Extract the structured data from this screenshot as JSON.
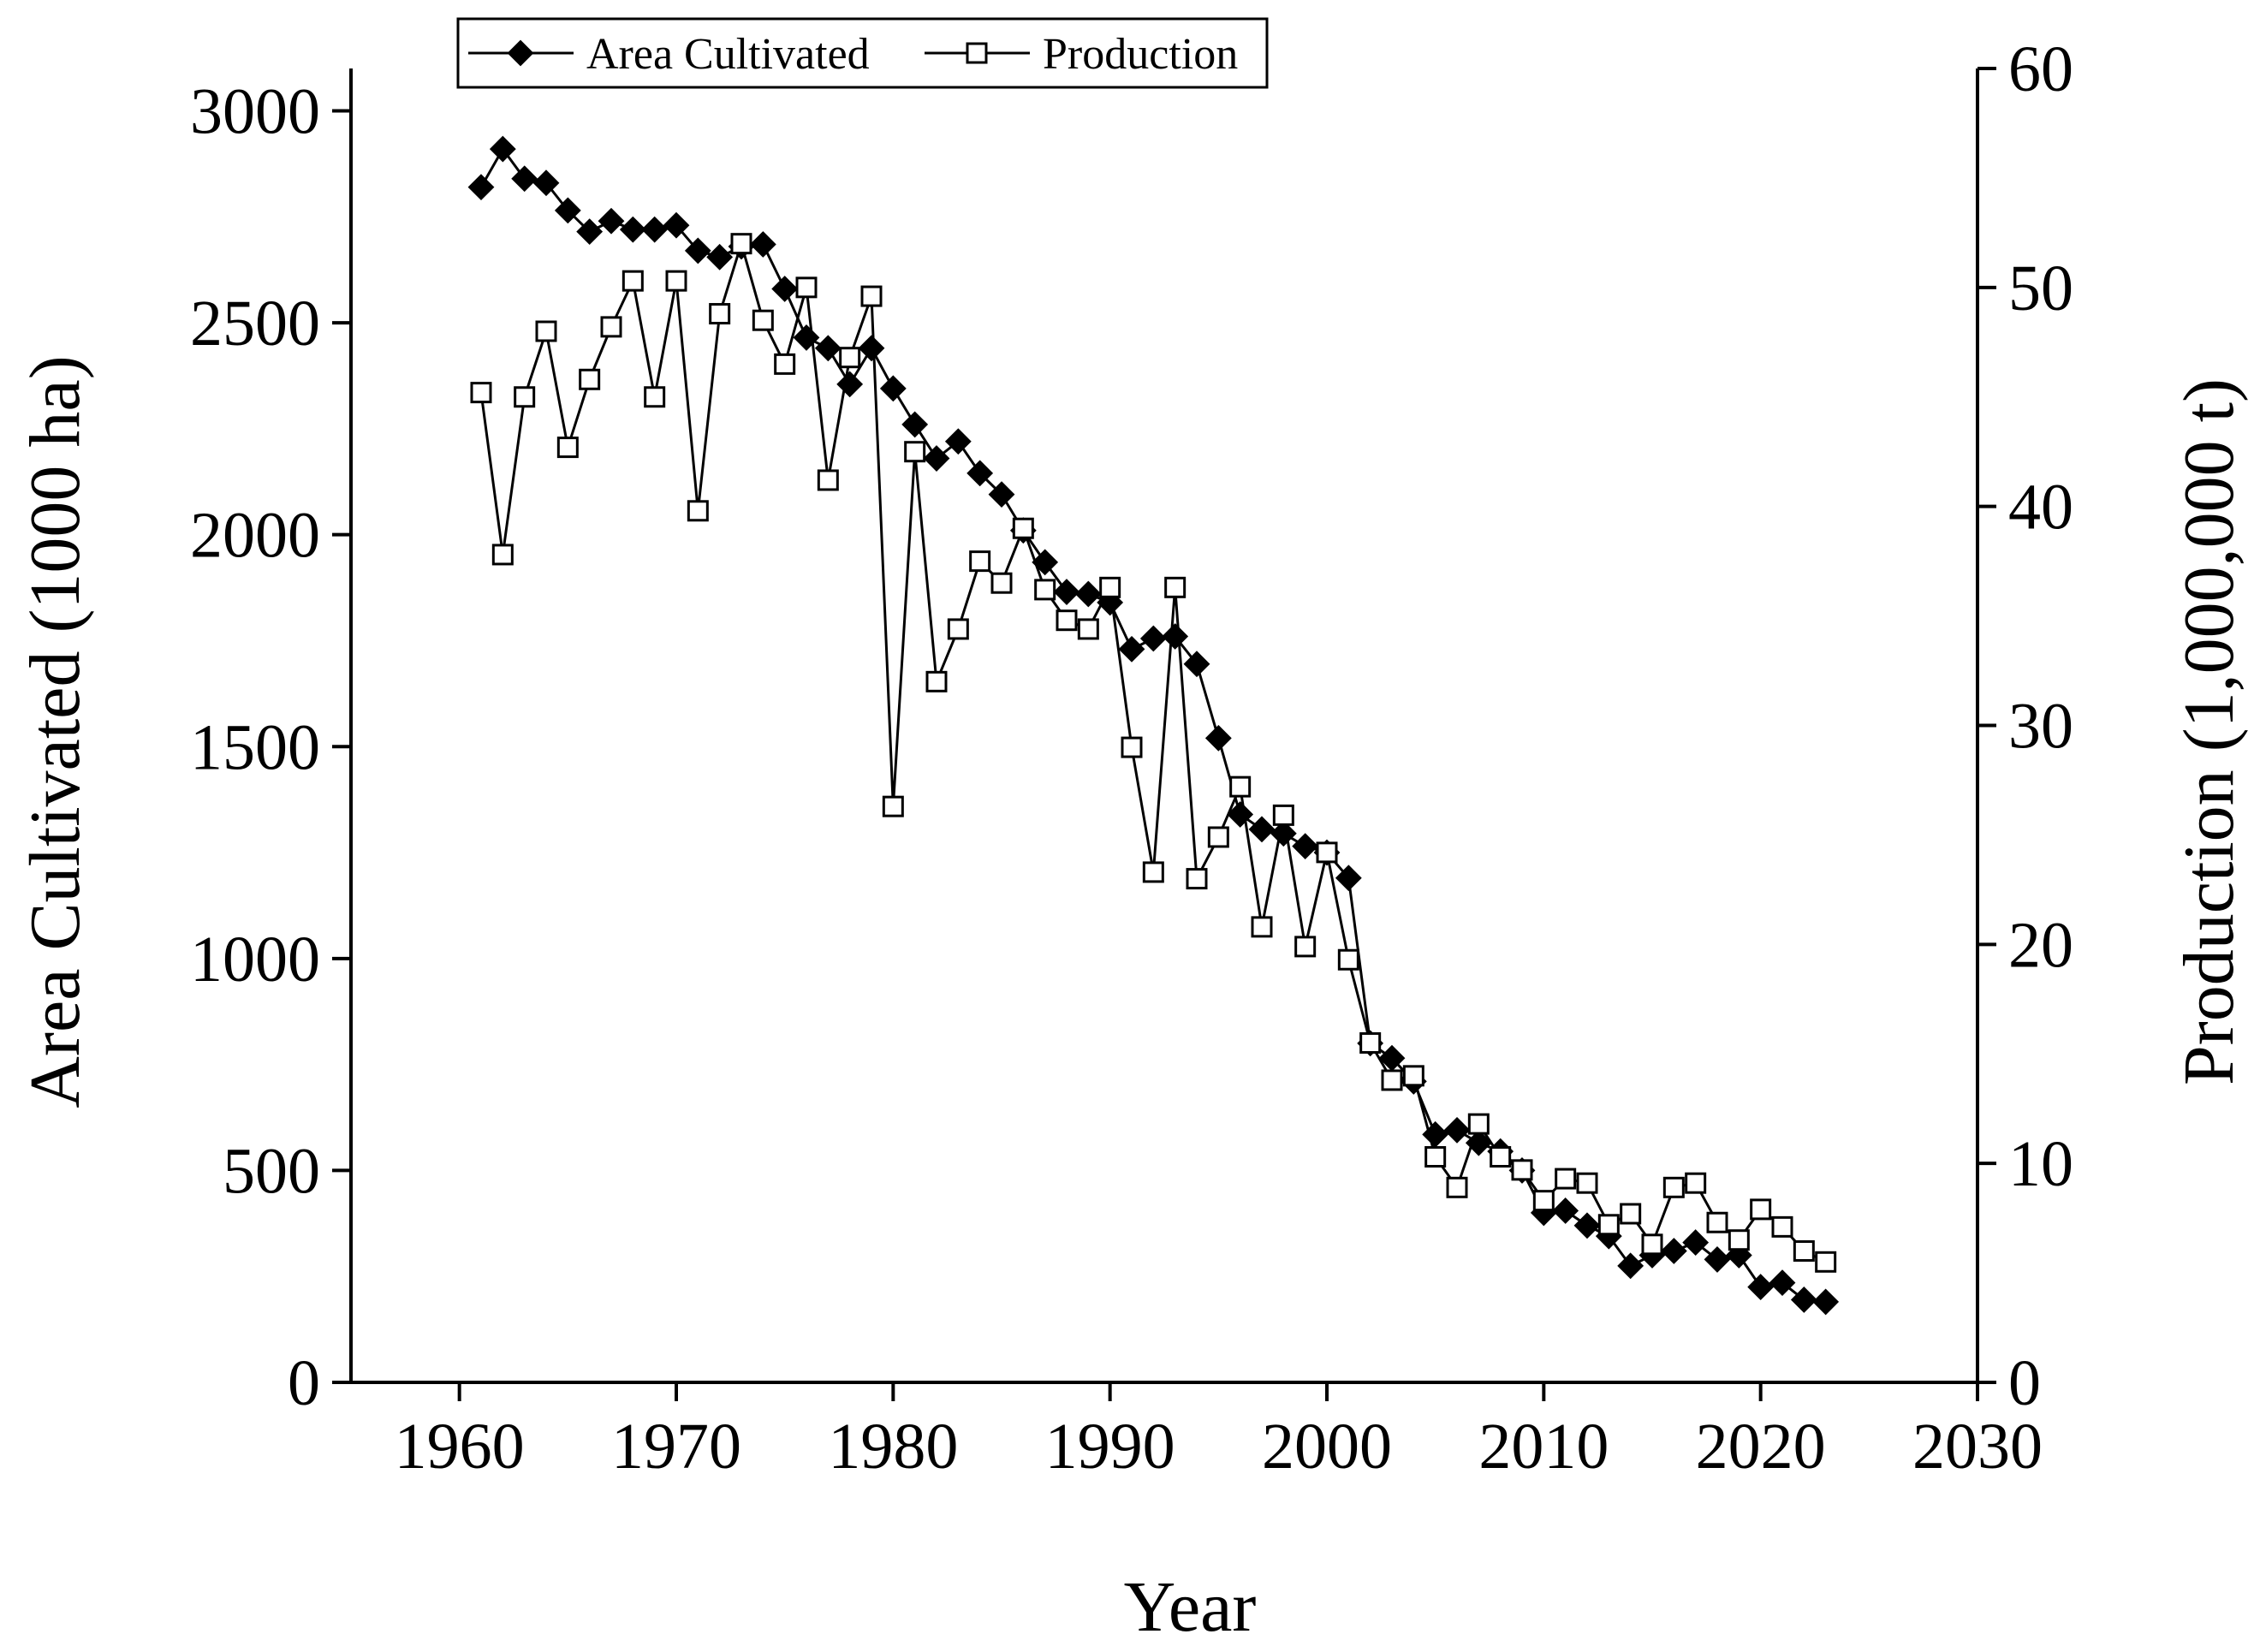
{
  "chart_data": {
    "type": "line",
    "xlabel": "Year",
    "ylabel": "Area Cultivated (1000 ha)",
    "y2label": "Production (1,000,000 t)",
    "xlim": [
      1955,
      2030
    ],
    "ylim": [
      0,
      3100
    ],
    "y2lim": [
      0,
      60
    ],
    "xticks": [
      1960,
      1970,
      1980,
      1990,
      2000,
      2010,
      2020,
      2030
    ],
    "yticks": [
      0,
      500,
      1000,
      1500,
      2000,
      2500,
      3000
    ],
    "y2ticks": [
      0,
      10,
      20,
      30,
      40,
      50,
      60
    ],
    "grid": false,
    "legend_position": "top-left",
    "x": [
      1961,
      1962,
      1963,
      1964,
      1965,
      1966,
      1967,
      1968,
      1969,
      1970,
      1971,
      1972,
      1973,
      1974,
      1975,
      1976,
      1977,
      1978,
      1979,
      1980,
      1981,
      1982,
      1983,
      1984,
      1985,
      1986,
      1987,
      1988,
      1989,
      1990,
      1991,
      1992,
      1993,
      1994,
      1995,
      1996,
      1997,
      1998,
      1999,
      2000,
      2001,
      2002,
      2003,
      2004,
      2005,
      2006,
      2007,
      2008,
      2009,
      2010,
      2011,
      2012,
      2013,
      2014,
      2015,
      2016,
      2017,
      2018,
      2019,
      2020,
      2021,
      2022,
      2023
    ],
    "series": [
      {
        "name": "Area Cultivated",
        "axis": "left",
        "marker": "filled-diamond",
        "color": "#000000",
        "values": [
          2820,
          2910,
          2840,
          2830,
          2765,
          2715,
          2740,
          2720,
          2720,
          2730,
          2670,
          2655,
          2680,
          2685,
          2580,
          2465,
          2440,
          2355,
          2440,
          2345,
          2260,
          2180,
          2220,
          2145,
          2095,
          2010,
          1935,
          1865,
          1860,
          1840,
          1730,
          1755,
          1760,
          1695,
          1520,
          1340,
          1305,
          1295,
          1265,
          1250,
          1190,
          800,
          765,
          710,
          585,
          595,
          565,
          545,
          500,
          400,
          405,
          370,
          345,
          275,
          300,
          310,
          330,
          290,
          300,
          225,
          235,
          195,
          190
        ]
      },
      {
        "name": "Production",
        "axis": "right",
        "marker": "open-square",
        "color": "#000000",
        "values": [
          45.2,
          37.8,
          45.0,
          48.0,
          42.7,
          45.8,
          48.2,
          50.3,
          45.0,
          50.3,
          39.8,
          48.8,
          52.0,
          48.5,
          46.5,
          50.0,
          41.2,
          46.8,
          49.6,
          26.3,
          42.5,
          32.0,
          34.4,
          37.5,
          36.5,
          39.0,
          36.2,
          34.8,
          34.4,
          36.3,
          29.0,
          23.3,
          36.3,
          23.0,
          24.9,
          27.2,
          20.8,
          25.9,
          19.9,
          24.2,
          19.3,
          15.5,
          13.8,
          14.0,
          10.3,
          8.9,
          11.8,
          10.3,
          9.7,
          8.3,
          9.3,
          9.1,
          7.2,
          7.7,
          6.3,
          8.9,
          9.1,
          7.3,
          6.5,
          7.9,
          7.1,
          6.0,
          5.5
        ]
      }
    ]
  }
}
